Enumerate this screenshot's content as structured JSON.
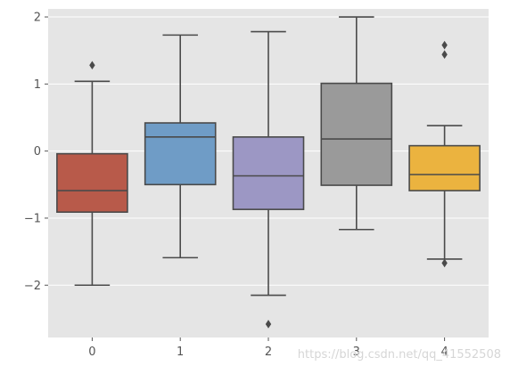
{
  "chart_data": {
    "type": "box",
    "categories": [
      "0",
      "1",
      "2",
      "3",
      "4"
    ],
    "ylim": [
      -2.78,
      2.12
    ],
    "yticks": [
      -2,
      -1,
      0,
      1,
      2
    ],
    "ytick_labels": [
      "−2",
      "−1",
      "0",
      "1",
      "2"
    ],
    "grid": true,
    "style": "ggplot",
    "boxes": [
      {
        "category": "0",
        "whisker_low": -2.0,
        "q1": -0.91,
        "median": -0.59,
        "q3": -0.04,
        "whisker_high": 1.04,
        "outliers": [
          1.28
        ],
        "color": "#B85A4A"
      },
      {
        "category": "1",
        "whisker_low": -1.59,
        "q1": -0.5,
        "median": 0.21,
        "q3": 0.42,
        "whisker_high": 1.73,
        "outliers": [],
        "color": "#6F9CC6"
      },
      {
        "category": "2",
        "whisker_low": -2.15,
        "q1": -0.87,
        "median": -0.37,
        "q3": 0.21,
        "whisker_high": 1.78,
        "outliers": [
          -2.58
        ],
        "color": "#9C97C4"
      },
      {
        "category": "3",
        "whisker_low": -1.17,
        "q1": -0.51,
        "median": 0.18,
        "q3": 1.01,
        "whisker_high": 2.0,
        "outliers": [],
        "color": "#9A9A9A"
      },
      {
        "category": "4",
        "whisker_low": -1.61,
        "q1": -0.59,
        "median": -0.35,
        "q3": 0.08,
        "whisker_high": 0.38,
        "outliers": [
          -1.67,
          1.44,
          1.58
        ],
        "color": "#EBB33F"
      }
    ]
  },
  "watermark": "https://blog.csdn.net/qq_41552508"
}
